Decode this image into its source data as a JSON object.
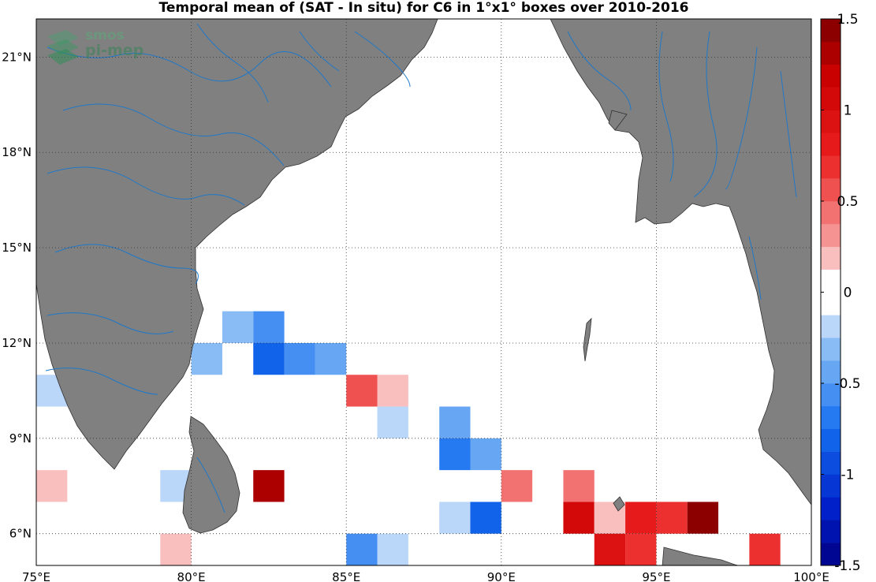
{
  "title": "Temporal mean of (SAT - In situ) for C6 in 1°x1° boxes over 2010-2016",
  "logo": {
    "line1": "smos",
    "line2": "pi-mep"
  },
  "map": {
    "lon_range": [
      75,
      100
    ],
    "lat_range": [
      5,
      22.2
    ],
    "lon_ticks": [
      {
        "value": 75,
        "label": "75°E"
      },
      {
        "value": 80,
        "label": "80°E"
      },
      {
        "value": 85,
        "label": "85°E"
      },
      {
        "value": 90,
        "label": "90°E"
      },
      {
        "value": 95,
        "label": "95°E"
      },
      {
        "value": 100,
        "label": "100°E"
      }
    ],
    "lat_ticks": [
      {
        "value": 6,
        "label": "6°N"
      },
      {
        "value": 9,
        "label": "9°N"
      },
      {
        "value": 12,
        "label": "12°N"
      },
      {
        "value": 15,
        "label": "15°N"
      },
      {
        "value": 18,
        "label": "18°N"
      },
      {
        "value": 21,
        "label": "21°N"
      }
    ],
    "grid": "dotted",
    "land_color": "#808080",
    "river_color": "#1f78c8"
  },
  "colorbar": {
    "range": [
      -1.5,
      1.5
    ],
    "levels": 24,
    "ticks": [
      {
        "value": 1.5,
        "label": "1.5"
      },
      {
        "value": 1,
        "label": "1"
      },
      {
        "value": 0.5,
        "label": "0.5"
      },
      {
        "value": 0,
        "label": "0"
      },
      {
        "value": -0.5,
        "label": "-0.5"
      },
      {
        "value": -1,
        "label": "-1"
      },
      {
        "value": -1.5,
        "label": "-1.5"
      }
    ]
  },
  "chart_data": {
    "type": "heatmap",
    "title": "Temporal mean of (SAT - In situ) for C6 in 1°x1° boxes over 2010-2016",
    "cell_size_deg": 1,
    "value_range": [
      -1.5,
      1.5
    ],
    "cells": [
      {
        "lon": 75,
        "lat": 10,
        "value": -0.15
      },
      {
        "lon": 75,
        "lat": 7,
        "value": 0.15
      },
      {
        "lon": 79,
        "lat": 7,
        "value": -0.15
      },
      {
        "lon": 79,
        "lat": 5,
        "value": 0.15
      },
      {
        "lon": 80,
        "lat": 11,
        "value": -0.35
      },
      {
        "lon": 81,
        "lat": 12,
        "value": -0.3
      },
      {
        "lon": 82,
        "lat": 12,
        "value": -0.6
      },
      {
        "lon": 82,
        "lat": 11,
        "value": -0.85
      },
      {
        "lon": 82,
        "lat": 7,
        "value": 1.3
      },
      {
        "lon": 83,
        "lat": 11,
        "value": -0.55
      },
      {
        "lon": 84,
        "lat": 11,
        "value": -0.4
      },
      {
        "lon": 85,
        "lat": 10,
        "value": 0.6
      },
      {
        "lon": 85,
        "lat": 5,
        "value": -0.6
      },
      {
        "lon": 86,
        "lat": 10,
        "value": 0.15
      },
      {
        "lon": 86,
        "lat": 9,
        "value": -0.15
      },
      {
        "lon": 86,
        "lat": 5,
        "value": -0.15
      },
      {
        "lon": 88,
        "lat": 9,
        "value": -0.4
      },
      {
        "lon": 88,
        "lat": 8,
        "value": -0.7
      },
      {
        "lon": 88,
        "lat": 6,
        "value": -0.15
      },
      {
        "lon": 89,
        "lat": 8,
        "value": -0.5
      },
      {
        "lon": 89,
        "lat": 6,
        "value": -0.8
      },
      {
        "lon": 90,
        "lat": 7,
        "value": 0.4
      },
      {
        "lon": 92,
        "lat": 7,
        "value": 0.4
      },
      {
        "lon": 92,
        "lat": 6,
        "value": 1.0
      },
      {
        "lon": 93,
        "lat": 6,
        "value": 0.15
      },
      {
        "lon": 93,
        "lat": 5,
        "value": 0.9
      },
      {
        "lon": 94,
        "lat": 6,
        "value": 0.85
      },
      {
        "lon": 94,
        "lat": 5,
        "value": 0.7
      },
      {
        "lon": 95,
        "lat": 6,
        "value": 0.65
      },
      {
        "lon": 96,
        "lat": 6,
        "value": 1.45
      },
      {
        "lon": 98,
        "lat": 5,
        "value": 0.7
      }
    ]
  }
}
